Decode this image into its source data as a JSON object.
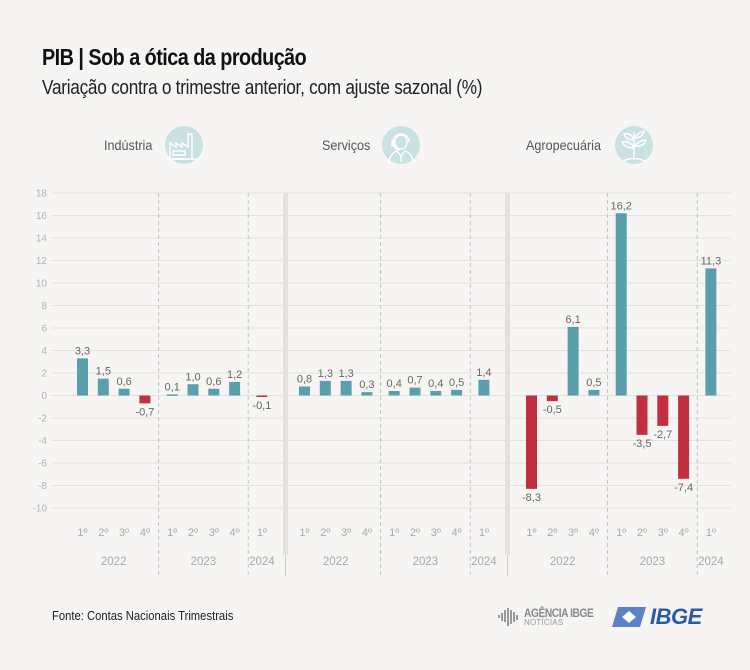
{
  "header": {
    "title": "PIB | Sob a ótica da produção",
    "subtitle": "Variação contra o trimestre anterior, com ajuste sazonal (%)"
  },
  "panels": [
    {
      "label": "Indústria",
      "icon": "factory-icon"
    },
    {
      "label": "Serviços",
      "icon": "customer-service-headset-icon"
    },
    {
      "label": "Agropecuária",
      "icon": "plant-sprout-icon"
    }
  ],
  "footer": {
    "source": "Fonte: Contas Nacionais Trimestrais",
    "logo_agencia_line1": "AGÊNCIA IBGE",
    "logo_agencia_line2": "NOTÍCIAS",
    "logo_ibge": "IBGE"
  },
  "colors": {
    "positive": "#5b9fad",
    "negative": "#c0303f",
    "icon_bg": "#c9e1e2"
  },
  "chart_data": {
    "type": "bar",
    "title": "PIB | Sob a ótica da produção",
    "subtitle": "Variação contra o trimestre anterior, com ajuste sazonal (%)",
    "xlabel": "",
    "ylabel": "",
    "ylim": [
      -10,
      18
    ],
    "yticks": [
      18,
      16,
      14,
      12,
      10,
      8,
      6,
      4,
      2,
      0,
      -2,
      -4,
      -6,
      -8,
      -10
    ],
    "grid": true,
    "quarter_labels": [
      "1º",
      "2º",
      "3º",
      "4º",
      "1º",
      "2º",
      "3º",
      "4º",
      "1º"
    ],
    "categories": [
      "2022 1º",
      "2022 2º",
      "2022 3º",
      "2022 4º",
      "2023 1º",
      "2023 2º",
      "2023 3º",
      "2023 4º",
      "2024 1º"
    ],
    "year_groups": [
      {
        "year": "2022",
        "count": 4
      },
      {
        "year": "2023",
        "count": 4
      },
      {
        "year": "2024",
        "count": 1
      }
    ],
    "series": [
      {
        "name": "Indústria",
        "values": [
          3.3,
          1.5,
          0.6,
          -0.7,
          0.1,
          1.0,
          0.6,
          1.2,
          -0.1
        ],
        "labels": [
          "3,3",
          "1,5",
          "0,6",
          "-0,7",
          "0,1",
          "1,0",
          "0,6",
          "1,2",
          "-0,1"
        ]
      },
      {
        "name": "Serviços",
        "values": [
          0.8,
          1.3,
          1.3,
          0.3,
          0.4,
          0.7,
          0.4,
          0.5,
          1.4
        ],
        "labels": [
          "0,8",
          "1,3",
          "1,3",
          "0,3",
          "0,4",
          "0,7",
          "0,4",
          "0,5",
          "1,4"
        ]
      },
      {
        "name": "Agropecuária",
        "values": [
          -8.3,
          -0.5,
          6.1,
          0.5,
          16.2,
          -3.5,
          -2.7,
          -7.4,
          11.3
        ],
        "labels": [
          "-8,3",
          "-0,5",
          "6,1",
          "0,5",
          "16,2",
          "-3,5",
          "-2,7",
          "-7,4",
          "11,3"
        ]
      }
    ]
  }
}
